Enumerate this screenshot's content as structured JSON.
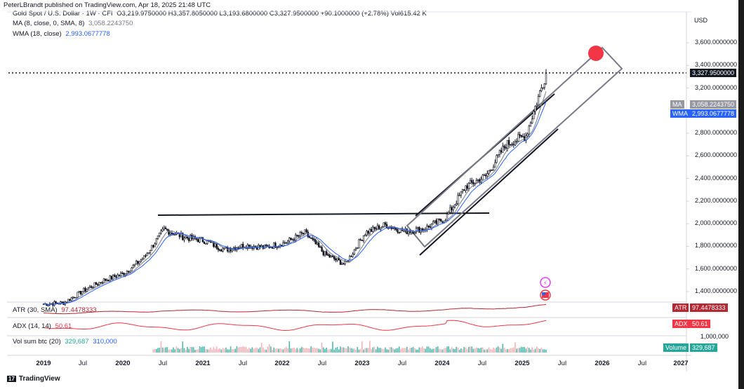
{
  "published_line": "PeterLBrandt published on TradingView.com, Apr 18, 2025 21:48 UTC",
  "header": {
    "symbol": "Gold Spot / U.S. Dollar · 1W · CFI",
    "ohlc": "O3,219.9750000  H3,357.8050000  L3,193.6800000  C3,327.9500000  +90.1000000 (+2.78%)  Vol615.42 K",
    "ma_label": "MA (8, close, 0, SMA, 8)",
    "ma_value": "3,058.2243750",
    "wma_label": "WMA (18, close)",
    "wma_value": "2,993.0677778"
  },
  "currency": "USD",
  "price_axis": [
    "3,600.0000000",
    "3,400.0000000",
    "3,200.0000000",
    "2,800.0000000",
    "2,600.0000000",
    "2,400.0000000",
    "2,200.0000000",
    "2,000.0000000",
    "1,800.0000000",
    "1,600.0000000",
    "1,400.0000000"
  ],
  "tags": {
    "close": "3,327.9500000",
    "ma_name": "MA",
    "ma_val": "3,058.2243750",
    "wma_name": "WMA",
    "wma_val": "2,993.0677778",
    "atr_name": "ATR",
    "atr_val": "97.4478333",
    "adx_name": "ADX",
    "adx_val": "50.61",
    "vol_axis": "1,000,000",
    "vol_name": "Volume",
    "vol_val": "329,687"
  },
  "indicators": {
    "atr": "ATR (30, SMA)",
    "atr_v": "97.4478333",
    "adx": "ADX (14, 14)",
    "adx_v": "50.61",
    "vol": "Vol sum btc (20)",
    "vol_v1": "329,687",
    "vol_v2": "310,000"
  },
  "time_axis": [
    "2019",
    "Jul",
    "2020",
    "Jul",
    "2021",
    "Jul",
    "2022",
    "Jul",
    "2023",
    "Jul",
    "2024",
    "Jul",
    "2025",
    "Jul",
    "2026",
    "Jul",
    "2027"
  ],
  "footer": "TradingView",
  "colors": {
    "ma": "#787b86",
    "wma": "#2962ff",
    "atr": "#b22833",
    "adx": "#f23645",
    "volume": "#26a69a",
    "close_tag": "#131722",
    "dot": "#f23645"
  },
  "chart_data": {
    "type": "candlestick",
    "title": "Gold Spot / U.S. Dollar",
    "interval": "1W",
    "ylim": [
      1300,
      3750
    ],
    "x": [
      "2019-01",
      "2019-04",
      "2019-07",
      "2019-10",
      "2020-01",
      "2020-04",
      "2020-07",
      "2020-10",
      "2021-01",
      "2021-04",
      "2021-07",
      "2021-10",
      "2022-01",
      "2022-04",
      "2022-07",
      "2022-10",
      "2023-01",
      "2023-04",
      "2023-07",
      "2023-10",
      "2024-01",
      "2024-04",
      "2024-07",
      "2024-10",
      "2025-01",
      "2025-04"
    ],
    "close": [
      1290,
      1300,
      1410,
      1500,
      1560,
      1700,
      1950,
      1880,
      1850,
      1770,
      1810,
      1790,
      1830,
      1920,
      1730,
      1640,
      1920,
      1990,
      1930,
      1960,
      2050,
      2330,
      2420,
      2700,
      2780,
      3328
    ],
    "ma8_last": 3058.224375,
    "wma18_last": 2993.0677778,
    "atr_last": 97.4478333,
    "adx_last": 50.61,
    "volume_last": 329687,
    "annotations": [
      "horizontal resistance ~2,080",
      "rising channel",
      "dotted line at last close 3,327.95",
      "red target dot ~3,550"
    ]
  }
}
